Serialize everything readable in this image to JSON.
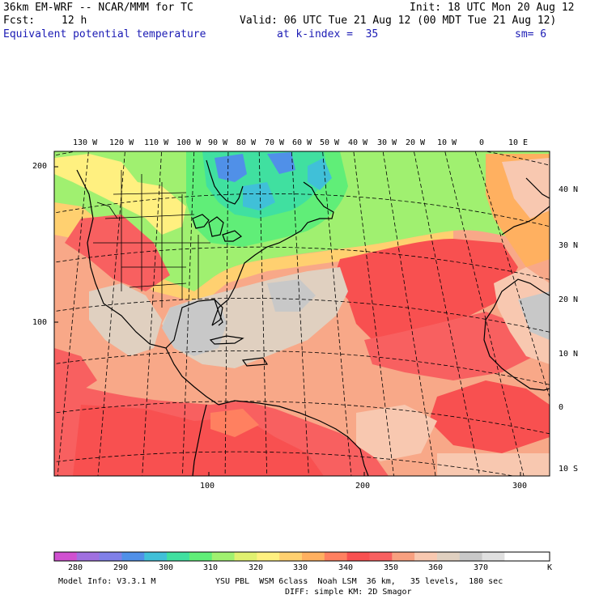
{
  "header": {
    "model": "36km EM-WRF -- NCAR/MMM for TC",
    "init": "Init: 18 UTC Mon 20 Aug 12",
    "fcst_label": "Fcst:",
    "fcst_value": "12 h",
    "valid": "Valid: 06 UTC Tue 21 Aug 12 (00 MDT Tue 21 Aug 12)",
    "field": "Equivalent potential temperature",
    "level": "at k-index =  35",
    "smooth": "sm= 6"
  },
  "map": {
    "lon_labels": [
      "130 W",
      "120 W",
      "110 W",
      "100 W",
      "90 W",
      "80 W",
      "70 W",
      "60 W",
      "50 W",
      "40 W",
      "30 W",
      "20 W",
      "10 W",
      "0",
      "10 E"
    ],
    "lat_labels": [
      "40 N",
      "30 N",
      "20 N",
      "10 N",
      "0",
      "10 S"
    ],
    "grid_y_labels": [
      "200",
      "100"
    ],
    "grid_x_labels": [
      "100",
      "200",
      "300"
    ]
  },
  "colorbar": {
    "labels": [
      "280",
      "290",
      "300",
      "310",
      "320",
      "330",
      "340",
      "350",
      "360",
      "370"
    ],
    "unit": "K",
    "colors": [
      "#d050d0",
      "#a070e0",
      "#8080e8",
      "#5090e8",
      "#40c0d8",
      "#40e0a0",
      "#60ee78",
      "#a0f070",
      "#e0f070",
      "#fff080",
      "#ffd070",
      "#ffb060",
      "#ff8060",
      "#f85050",
      "#f86060",
      "#f8a080",
      "#f8c8b0",
      "#e0d0c0",
      "#c8c8c8",
      "#e0e0e0",
      "#ffffff",
      "#ffffff"
    ]
  },
  "footer": {
    "model_info": "Model Info: V3.3.1 M",
    "physics1": "YSU PBL  WSM 6class  Noah LSM  36 km,   35 levels,  180 sec",
    "physics2": "DIFF: simple KM: 2D Smagor"
  }
}
